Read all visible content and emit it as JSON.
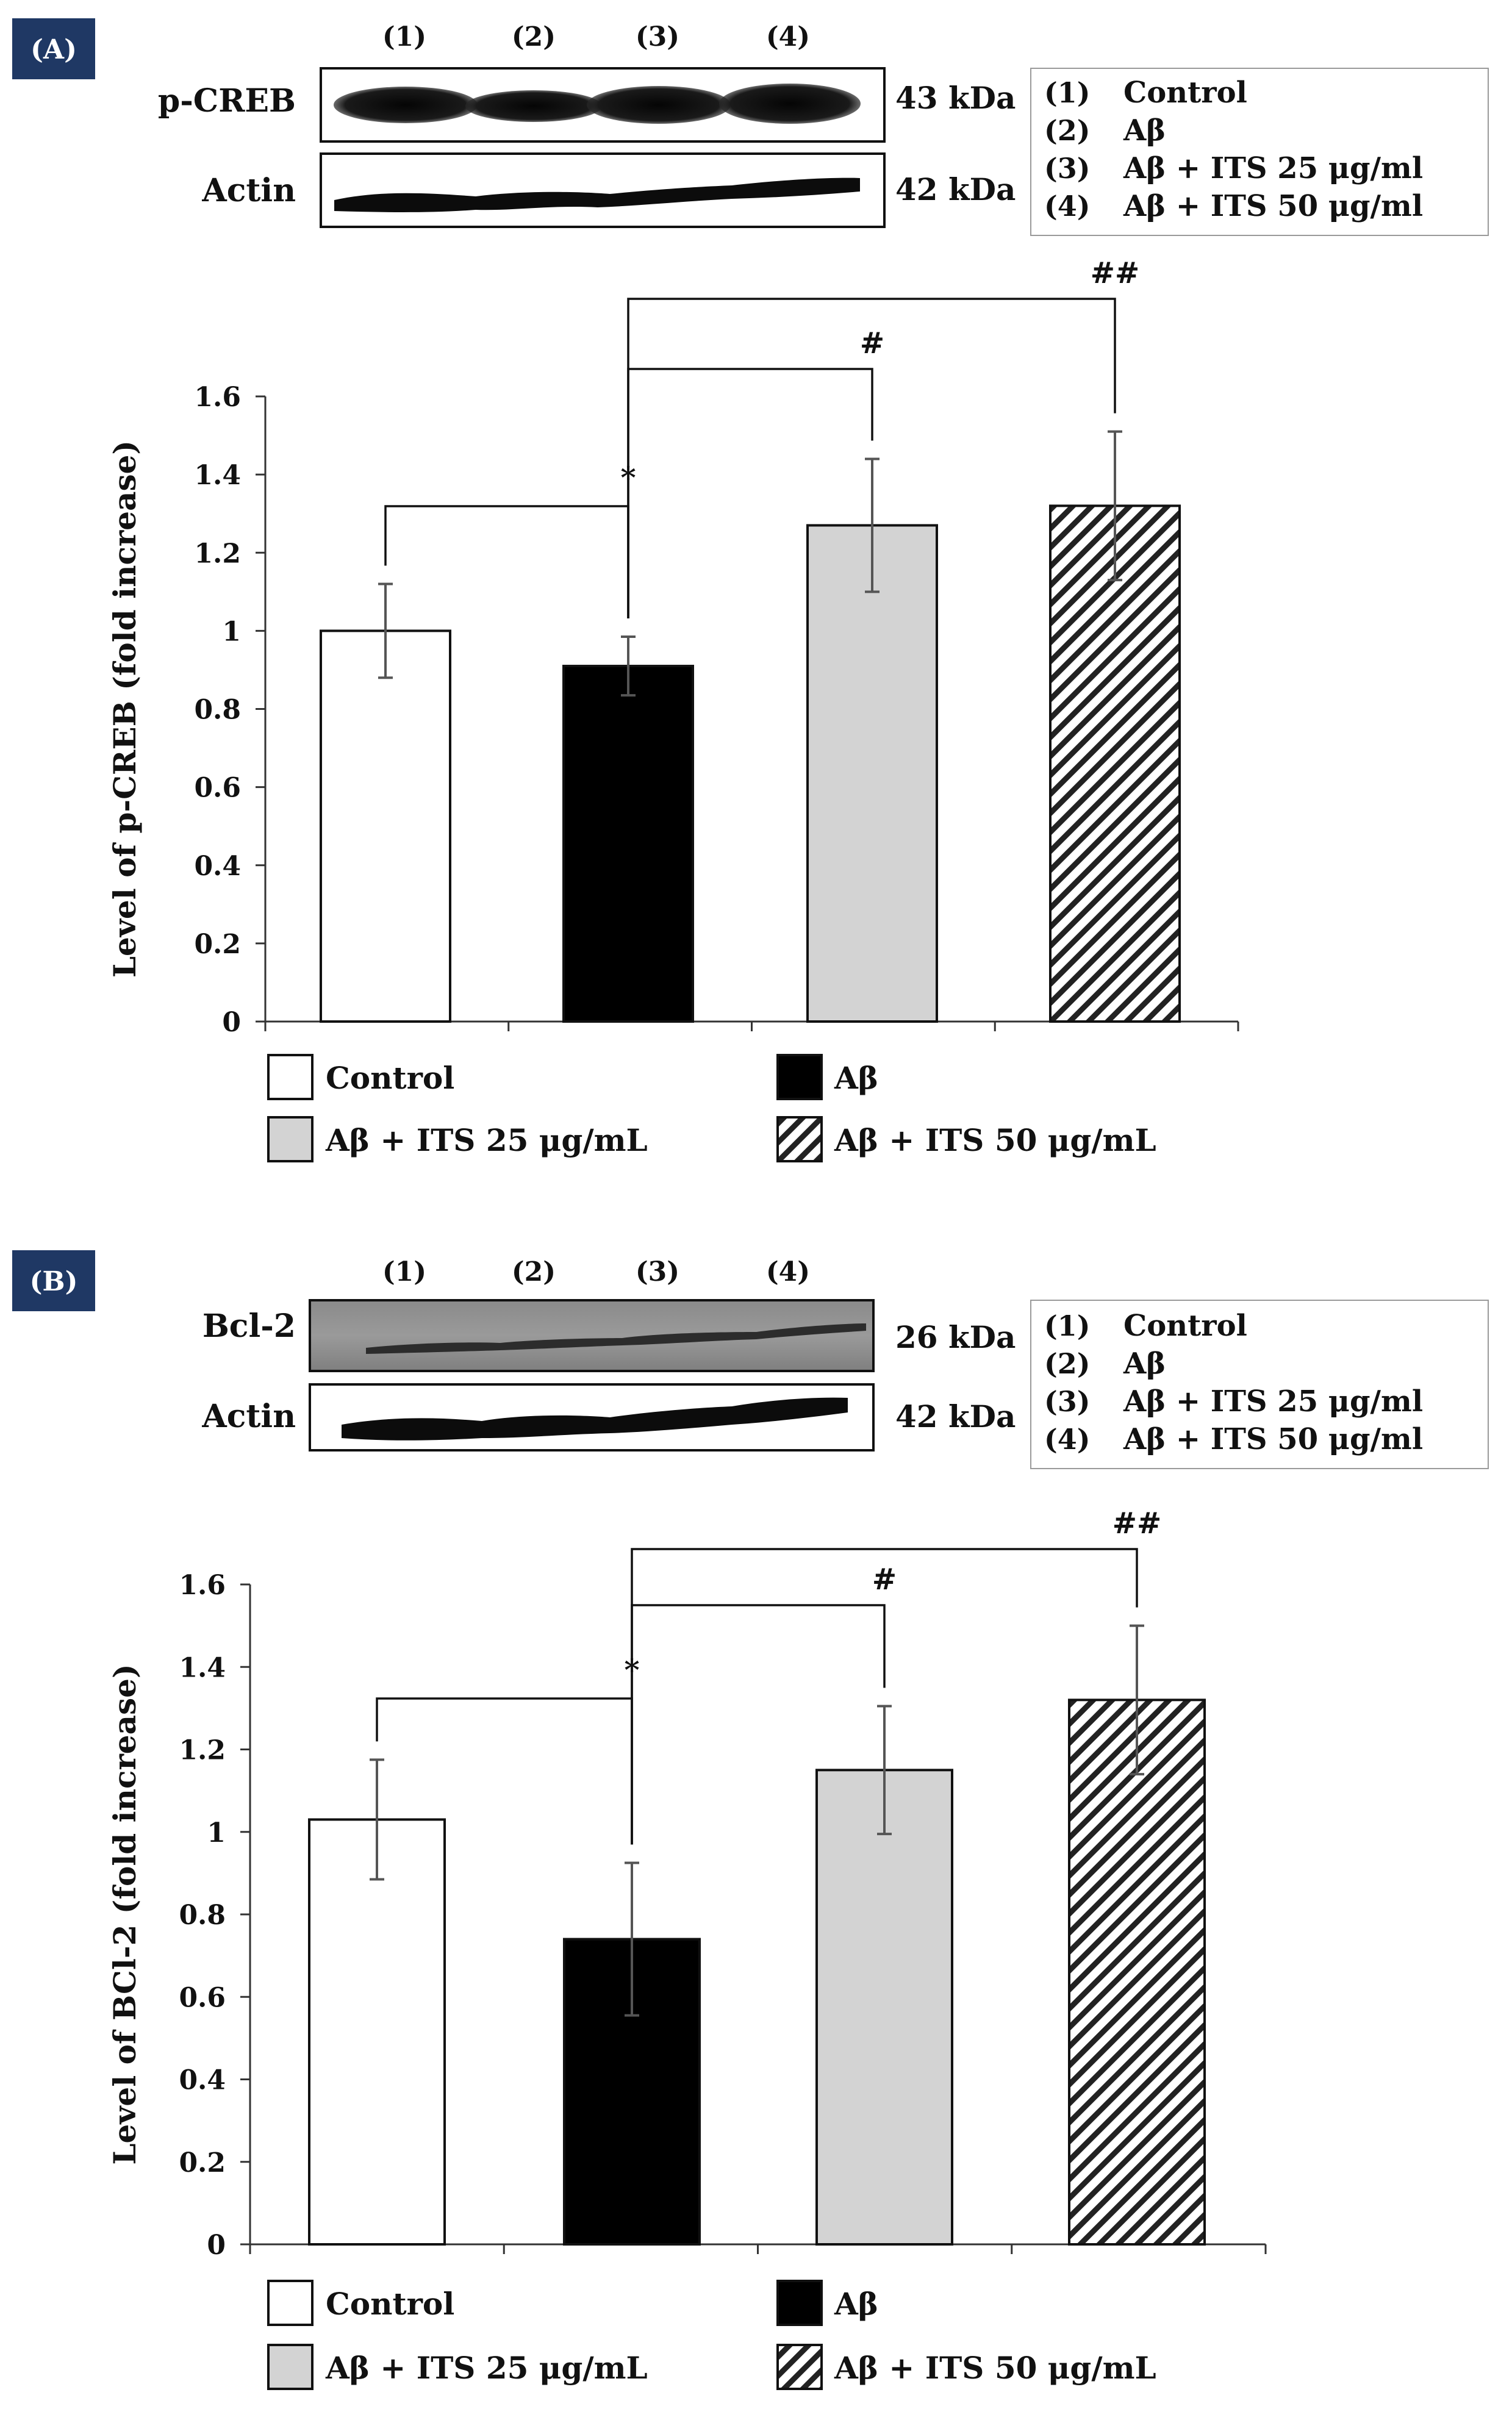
{
  "colors": {
    "control": "#ffffff",
    "abeta": "#000000",
    "its25": "#d3d3d3",
    "its50_stripe": "#222222",
    "badge": "#1f3864"
  },
  "patterns": {
    "control": "solid",
    "abeta": "solid",
    "its25": "solid",
    "its50": "diagonal-hatch"
  },
  "panels": [
    {
      "label": "(A)",
      "lane_labels": [
        "(1)",
        "(2)",
        "(3)",
        "(4)"
      ],
      "blots": [
        {
          "name": "p-CREB",
          "kda": "43 kDa"
        },
        {
          "name": "Actin",
          "kda": "42 kDa"
        }
      ],
      "lane_legend": [
        {
          "num": "(1)",
          "text": "Control"
        },
        {
          "num": "(2)",
          "text": "Aβ"
        },
        {
          "num": "(3)",
          "text": "Aβ + ITS 25 μg/ml"
        },
        {
          "num": "(4)",
          "text": "Aβ + ITS 50 μg/ml"
        }
      ]
    },
    {
      "label": "(B)",
      "lane_labels": [
        "(1)",
        "(2)",
        "(3)",
        "(4)"
      ],
      "blots": [
        {
          "name": "Bcl-2",
          "kda": "26 kDa"
        },
        {
          "name": "Actin",
          "kda": "42 kDa"
        }
      ],
      "lane_legend": [
        {
          "num": "(1)",
          "text": "Control"
        },
        {
          "num": "(2)",
          "text": "Aβ"
        },
        {
          "num": "(3)",
          "text": "Aβ + ITS 25 μg/ml"
        },
        {
          "num": "(4)",
          "text": "Aβ + ITS 50 μg/ml"
        }
      ]
    }
  ],
  "chart_data": [
    {
      "type": "bar",
      "ylabel": "Level of p-CREB (fold increase)",
      "ylim": [
        0,
        1.6
      ],
      "yticks": [
        "0",
        "0.2",
        "0.4",
        "0.6",
        "0.8",
        "1",
        "1.2",
        "1.4",
        "1.6"
      ],
      "categories": [
        "Control",
        "Aβ",
        "Aβ + ITS 25 μg/mL",
        "Aβ + ITS 50 μg/mL"
      ],
      "values": [
        1.0,
        0.91,
        1.27,
        1.32
      ],
      "errors": [
        0.12,
        0.075,
        0.17,
        0.19
      ],
      "significance": [
        {
          "label": "*",
          "between": [
            0,
            1
          ]
        },
        {
          "label": "#",
          "between": [
            1,
            2
          ]
        },
        {
          "label": "##",
          "between": [
            1,
            3
          ]
        }
      ],
      "legend": [
        "Control",
        "Aβ",
        "Aβ + ITS 25 μg/mL",
        "Aβ + ITS 50 μg/mL"
      ]
    },
    {
      "type": "bar",
      "ylabel": "Level of BCl-2 (fold increase)",
      "ylim": [
        0,
        1.6
      ],
      "yticks": [
        "0",
        "0.2",
        "0.4",
        "0.6",
        "0.8",
        "1",
        "1.2",
        "1.4",
        "1.6"
      ],
      "categories": [
        "Control",
        "Aβ",
        "Aβ + ITS 25 μg/mL",
        "Aβ + ITS 50 μg/mL"
      ],
      "values": [
        1.03,
        0.74,
        1.15,
        1.32
      ],
      "errors": [
        0.145,
        0.185,
        0.155,
        0.18
      ],
      "significance": [
        {
          "label": "*",
          "between": [
            0,
            1
          ]
        },
        {
          "label": "#",
          "between": [
            1,
            2
          ]
        },
        {
          "label": "##",
          "between": [
            1,
            3
          ]
        }
      ],
      "legend": [
        "Control",
        "Aβ",
        "Aβ + ITS 25 μg/mL",
        "Aβ + ITS 50 μg/mL"
      ]
    }
  ]
}
